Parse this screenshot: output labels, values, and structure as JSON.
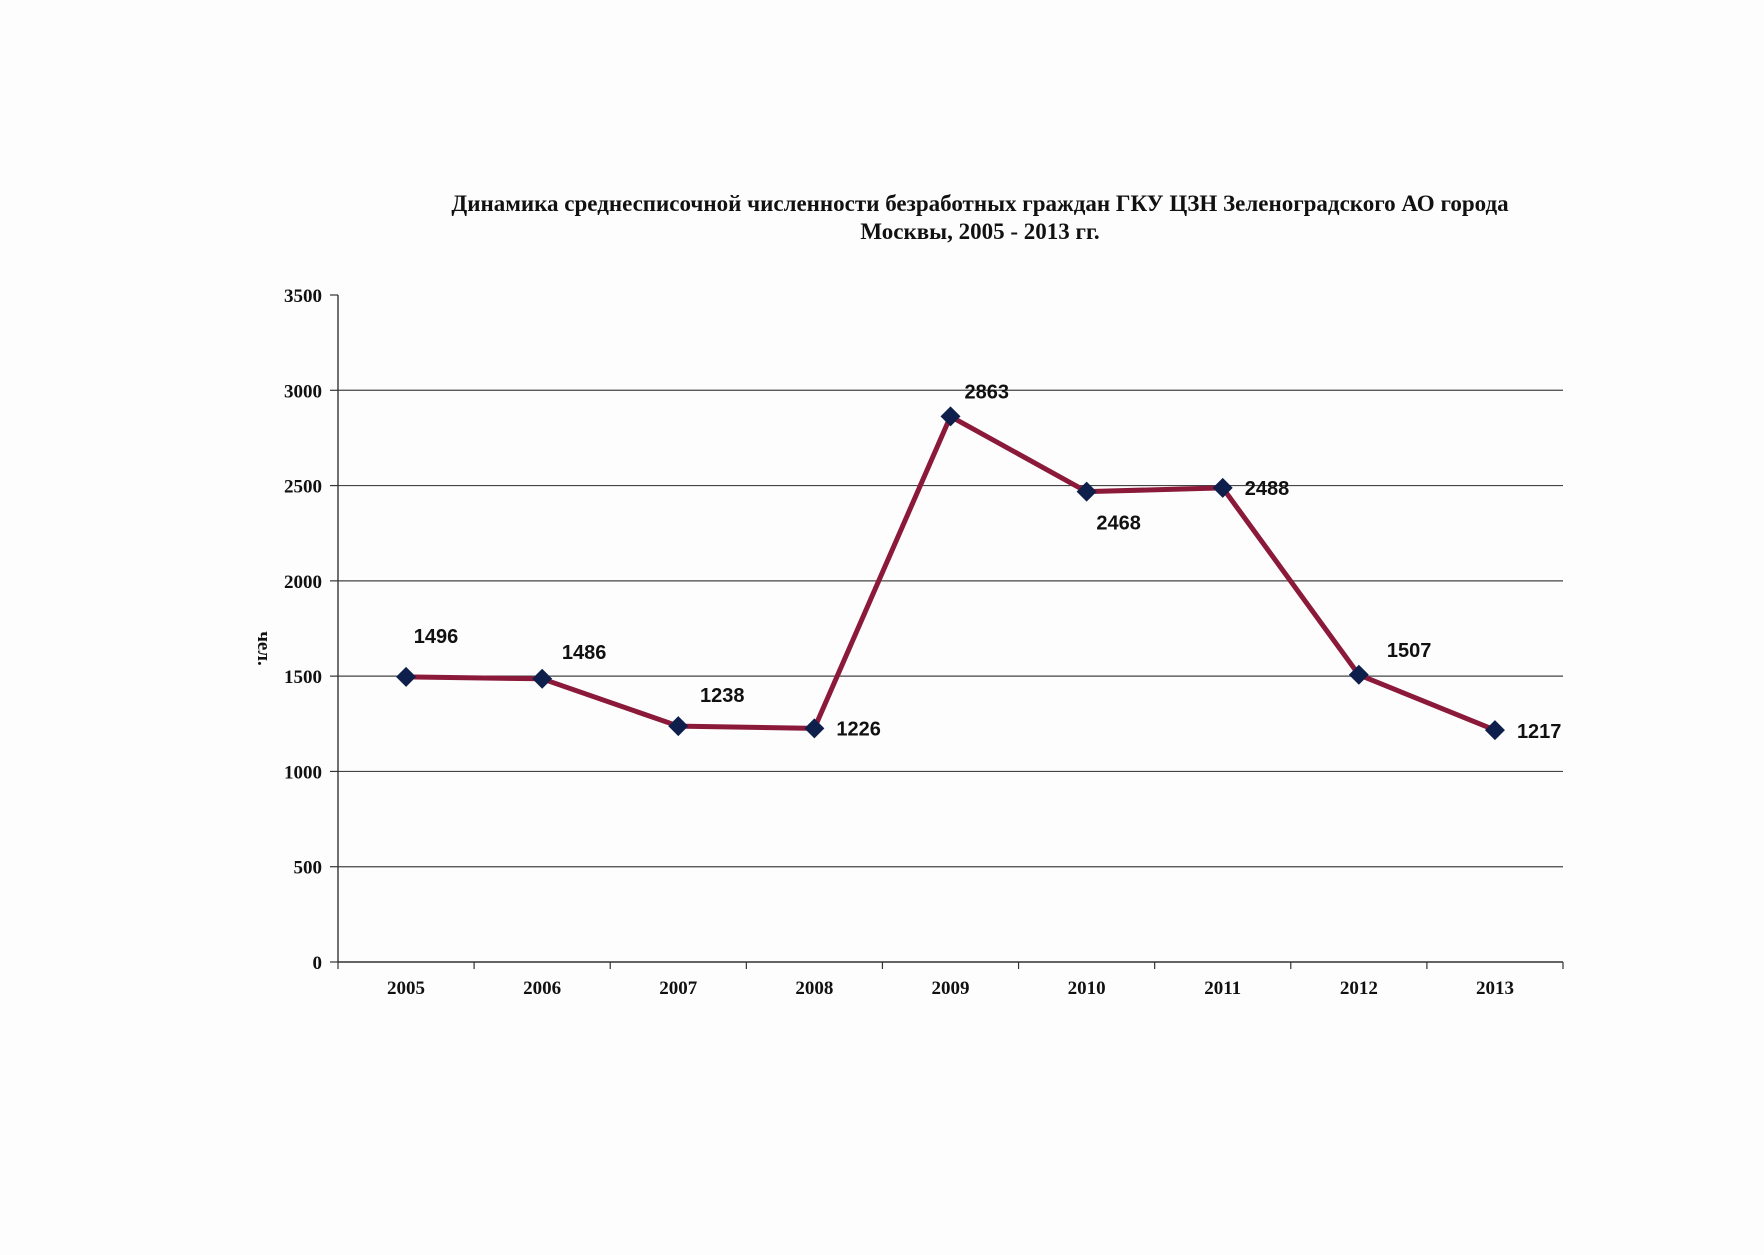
{
  "chart_data": {
    "type": "line",
    "title_line1": "Динамика среднесписочной численности безработных граждан ГКУ ЦЗН Зеленоградского АО города",
    "title_line2": "Москвы, 2005 - 2013 гг.",
    "xlabel": "",
    "ylabel": "чел.",
    "categories": [
      "2005",
      "2006",
      "2007",
      "2008",
      "2009",
      "2010",
      "2011",
      "2012",
      "2013"
    ],
    "series": [
      {
        "values": [
          1496,
          1486,
          1238,
          1226,
          2863,
          2468,
          2488,
          1507,
          1217
        ],
        "color": "#8b1a3a",
        "marker_color": "#0d1f4a"
      }
    ],
    "ylim": [
      0,
      3500
    ],
    "yticks": [
      0,
      500,
      1000,
      1500,
      2000,
      2500,
      3000,
      3500
    ],
    "grid": true,
    "legend": "none"
  }
}
